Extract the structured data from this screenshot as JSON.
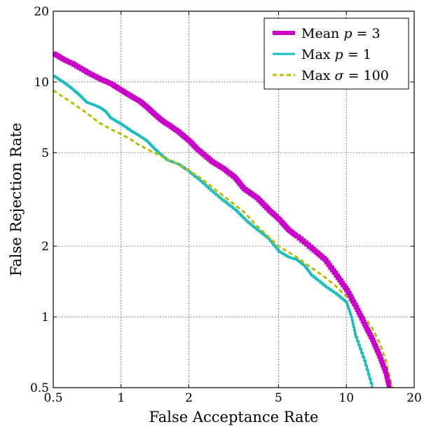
{
  "chart_data": {
    "type": "line",
    "title": "",
    "xlabel": "False Acceptance Rate",
    "ylabel": "False Rejection Rate",
    "xscale": "log",
    "yscale": "log",
    "xlim": [
      0.5,
      20
    ],
    "ylim": [
      0.5,
      20
    ],
    "xticks": [
      {
        "value": 0.5,
        "label": "0.5"
      },
      {
        "value": 1,
        "label": "1"
      },
      {
        "value": 2,
        "label": "2"
      },
      {
        "value": 5,
        "label": "5"
      },
      {
        "value": 10,
        "label": "10"
      },
      {
        "value": 20,
        "label": "20"
      }
    ],
    "yticks": [
      {
        "value": 0.5,
        "label": "0.5"
      },
      {
        "value": 1,
        "label": "1"
      },
      {
        "value": 2,
        "label": "2"
      },
      {
        "value": 5,
        "label": "5"
      },
      {
        "value": 10,
        "label": "10"
      },
      {
        "value": 20,
        "label": "20"
      }
    ],
    "grid": true,
    "legend_position": "top-right",
    "series": [
      {
        "name": "Mean p = 3",
        "legend_parts": {
          "prefix": "Mean ",
          "var": "p",
          "suffix": " = 3"
        },
        "color": "#c800c8",
        "style": "solid",
        "width": "thick",
        "x": [
          0.5,
          0.55,
          0.6,
          0.7,
          0.8,
          0.9,
          1.0,
          1.1,
          1.2,
          1.3,
          1.4,
          1.5,
          1.6,
          1.8,
          2.0,
          2.2,
          2.5,
          2.8,
          3.2,
          3.5,
          4.0,
          4.5,
          5.0,
          5.5,
          6.0,
          7.0,
          8.0,
          9.0,
          10.0,
          11.0,
          12.0,
          13.0,
          14.0,
          15.0,
          15.5
        ],
        "y": [
          13.2,
          12.5,
          12.0,
          11.0,
          10.3,
          9.8,
          9.2,
          8.7,
          8.3,
          7.8,
          7.3,
          6.9,
          6.6,
          6.1,
          5.6,
          5.1,
          4.6,
          4.3,
          3.9,
          3.5,
          3.2,
          2.85,
          2.6,
          2.35,
          2.2,
          1.95,
          1.75,
          1.5,
          1.3,
          1.1,
          0.93,
          0.8,
          0.68,
          0.57,
          0.5
        ]
      },
      {
        "name": "Max p = 1",
        "legend_parts": {
          "prefix": "Max ",
          "var": "p",
          "suffix": " = 1"
        },
        "color": "#18bcbc",
        "style": "solid",
        "width": "normal",
        "x": [
          0.5,
          0.55,
          0.6,
          0.65,
          0.7,
          0.75,
          0.8,
          0.85,
          0.9,
          1.0,
          1.1,
          1.2,
          1.3,
          1.4,
          1.5,
          1.6,
          1.8,
          2.0,
          2.2,
          2.5,
          2.8,
          3.2,
          3.6,
          4.0,
          4.5,
          5.0,
          5.5,
          6.0,
          6.5,
          7.0,
          8.0,
          9.0,
          10.0,
          10.5,
          11.0,
          12.0,
          13.0
        ],
        "y": [
          10.6,
          10.0,
          9.4,
          8.8,
          8.2,
          8.0,
          7.8,
          7.5,
          7.0,
          6.6,
          6.2,
          5.9,
          5.6,
          5.2,
          4.9,
          4.65,
          4.45,
          4.15,
          3.85,
          3.45,
          3.15,
          2.85,
          2.55,
          2.35,
          2.15,
          1.9,
          1.8,
          1.75,
          1.65,
          1.5,
          1.35,
          1.25,
          1.15,
          1.0,
          0.82,
          0.65,
          0.5
        ]
      },
      {
        "name": "Max σ = 100",
        "legend_parts": {
          "prefix": "Max ",
          "var": "σ",
          "suffix": " = 100"
        },
        "color": "#bcbc00",
        "style": "dashed",
        "width": "normal",
        "x": [
          0.5,
          0.6,
          0.7,
          0.8,
          0.9,
          1.0,
          1.1,
          1.2,
          1.4,
          1.6,
          1.8,
          2.0,
          2.3,
          2.6,
          3.0,
          3.5,
          4.0,
          4.5,
          5.0,
          6.0,
          7.0,
          8.0,
          9.0,
          10.0,
          11.0,
          12.0,
          13.0,
          14.0,
          15.0,
          16.0
        ],
        "y": [
          9.2,
          8.2,
          7.4,
          6.7,
          6.3,
          6.0,
          5.7,
          5.4,
          5.0,
          4.7,
          4.45,
          4.2,
          3.85,
          3.5,
          3.15,
          2.8,
          2.45,
          2.2,
          2.0,
          1.8,
          1.62,
          1.48,
          1.35,
          1.22,
          1.1,
          1.0,
          0.9,
          0.78,
          0.65,
          0.5
        ]
      }
    ]
  }
}
